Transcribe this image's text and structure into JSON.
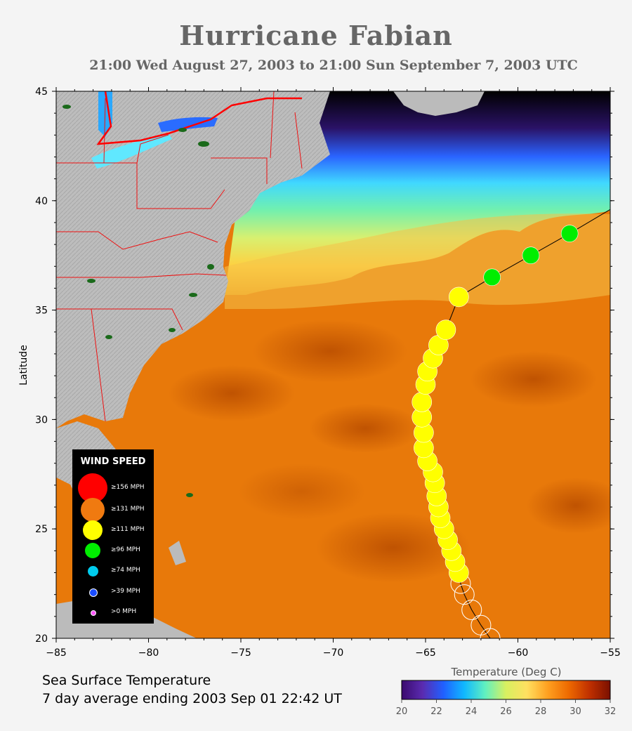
{
  "header": {
    "title": "Hurricane Fabian",
    "subtitle": "21:00 Wed August 27, 2003 to 21:00 Sun September  7, 2003  UTC"
  },
  "map": {
    "lon_range": [
      -85,
      -55
    ],
    "lat_range": [
      20,
      45
    ],
    "x_ticks": [
      "−85",
      "−80",
      "−75",
      "−70",
      "−65",
      "−60",
      "−55"
    ],
    "y_ticks": [
      "45",
      "40",
      "35",
      "30",
      "25",
      "20"
    ],
    "y_label": "Latitude"
  },
  "legend": {
    "title": "WIND SPEED",
    "items": [
      {
        "label": "≥156 MPH",
        "color": "#ff0000"
      },
      {
        "label": "≥131 MPH",
        "color": "#f07a10"
      },
      {
        "label": "≥111 MPH",
        "color": "#ffff00"
      },
      {
        "label": "≥96 MPH",
        "color": "#00ee00"
      },
      {
        "label": "≥74 MPH",
        "color": "#00ccee"
      },
      {
        ">39": "",
        "label": ">39 MPH",
        "color": "#1a4cff"
      },
      {
        "label": ">0 MPH",
        "color": "#ff55ff"
      }
    ]
  },
  "track": [
    {
      "lon": -61.5,
      "lat": 20.0,
      "cat": "none"
    },
    {
      "lon": -62.0,
      "lat": 20.6,
      "cat": "none"
    },
    {
      "lon": -62.5,
      "lat": 21.3,
      "cat": "none"
    },
    {
      "lon": -62.9,
      "lat": 22.0,
      "cat": "none"
    },
    {
      "lon": -63.1,
      "lat": 22.5,
      "cat": "none"
    },
    {
      "lon": -63.2,
      "lat": 23.0,
      "cat": "111"
    },
    {
      "lon": -63.4,
      "lat": 23.5,
      "cat": "111"
    },
    {
      "lon": -63.6,
      "lat": 24.0,
      "cat": "111"
    },
    {
      "lon": -63.8,
      "lat": 24.5,
      "cat": "111"
    },
    {
      "lon": -64.0,
      "lat": 25.0,
      "cat": "111"
    },
    {
      "lon": -64.2,
      "lat": 25.5,
      "cat": "111"
    },
    {
      "lon": -64.3,
      "lat": 26.0,
      "cat": "111"
    },
    {
      "lon": -64.4,
      "lat": 26.5,
      "cat": "111"
    },
    {
      "lon": -64.5,
      "lat": 27.1,
      "cat": "111"
    },
    {
      "lon": -64.6,
      "lat": 27.6,
      "cat": "111"
    },
    {
      "lon": -64.9,
      "lat": 28.1,
      "cat": "111"
    },
    {
      "lon": -65.1,
      "lat": 28.7,
      "cat": "111"
    },
    {
      "lon": -65.1,
      "lat": 29.4,
      "cat": "111"
    },
    {
      "lon": -65.2,
      "lat": 30.1,
      "cat": "111"
    },
    {
      "lon": -65.2,
      "lat": 30.8,
      "cat": "111"
    },
    {
      "lon": -65.0,
      "lat": 31.6,
      "cat": "111"
    },
    {
      "lon": -64.9,
      "lat": 32.2,
      "cat": "111"
    },
    {
      "lon": -64.6,
      "lat": 32.8,
      "cat": "111"
    },
    {
      "lon": -64.3,
      "lat": 33.4,
      "cat": "111"
    },
    {
      "lon": -63.9,
      "lat": 34.1,
      "cat": "111"
    },
    {
      "lon": -63.2,
      "lat": 35.6,
      "cat": "111"
    },
    {
      "lon": -61.4,
      "lat": 36.5,
      "cat": "96"
    },
    {
      "lon": -59.3,
      "lat": 37.5,
      "cat": "96"
    },
    {
      "lon": -57.2,
      "lat": 38.5,
      "cat": "96"
    },
    {
      "lon": -55.0,
      "lat": 39.6,
      "cat": "line"
    }
  ],
  "footer": {
    "line1": "Sea Surface Temperature",
    "line2": "7 day average ending 2003 Sep 01 22:42 UT"
  },
  "colorbar": {
    "title": "Temperature (Deg C)",
    "ticks": [
      "20",
      "22",
      "24",
      "26",
      "28",
      "30",
      "32"
    ],
    "stops": [
      "#3b0a6e",
      "#5a2bb0",
      "#2060ff",
      "#10b8ff",
      "#60f0c0",
      "#d8f060",
      "#ffe060",
      "#ffa020",
      "#ee6a00",
      "#c03000",
      "#7a1000"
    ]
  },
  "colors": {
    "ocean_warm": "#e8790a",
    "ocean_mid": "#f0a020",
    "ocean_cool": "#cfe870",
    "land": "#bcbcbc",
    "border": "#ee1111"
  }
}
